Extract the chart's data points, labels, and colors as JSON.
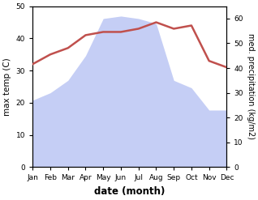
{
  "months": [
    "Jan",
    "Feb",
    "Mar",
    "Apr",
    "May",
    "Jun",
    "Jul",
    "Aug",
    "Sep",
    "Oct",
    "Nov",
    "Dec"
  ],
  "temperature": [
    32,
    35,
    37,
    41,
    42,
    42,
    43,
    45,
    43,
    44,
    33,
    31
  ],
  "precipitation": [
    27,
    30,
    35,
    45,
    60,
    61,
    60,
    58,
    35,
    32,
    23,
    23
  ],
  "temp_color": "#c0504d",
  "precip_fill_color": "#c5cef5",
  "temp_ylim": [
    0,
    50
  ],
  "precip_ylim": [
    0,
    65
  ],
  "precip_right_ticks": [
    0,
    10,
    20,
    30,
    40,
    50,
    60
  ],
  "temp_left_ticks": [
    0,
    10,
    20,
    30,
    40,
    50
  ],
  "xlabel": "date (month)",
  "ylabel_left": "max temp (C)",
  "ylabel_right": "med. precipitation (kg/m2)",
  "figsize": [
    3.18,
    2.47
  ],
  "dpi": 100
}
